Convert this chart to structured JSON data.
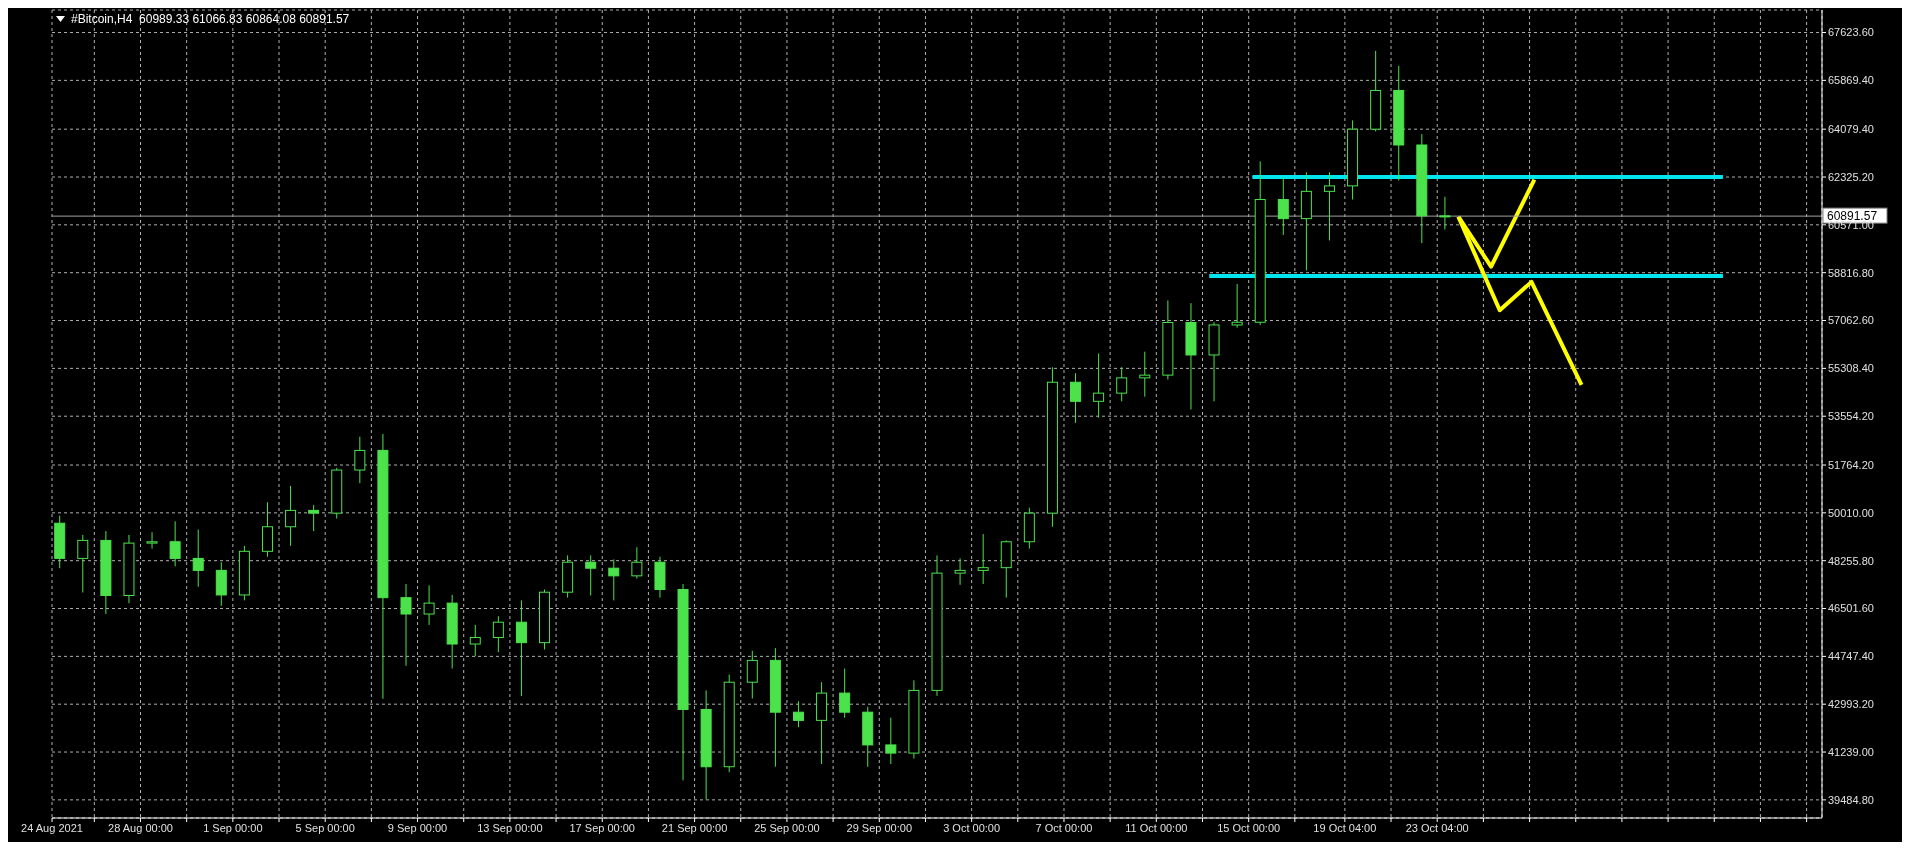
{
  "chart_data": {
    "type": "candlestick",
    "title": "#Bitcoin,H4  60989.33 61066.83 60864.08 60891.57",
    "color": "#4ce24c",
    "x": [
      "2021-08-24T12:00",
      "2021-08-25T12:00",
      "2021-08-26T12:00",
      "2021-08-27T12:00",
      "2021-08-28T12:00",
      "2021-08-29T12:00",
      "2021-08-30T12:00",
      "2021-08-31T12:00",
      "2021-09-01T12:00",
      "2021-09-02T12:00",
      "2021-09-03T12:00",
      "2021-09-04T12:00",
      "2021-09-05T12:00",
      "2021-09-06T12:00",
      "2021-09-07T12:00",
      "2021-09-08T12:00",
      "2021-09-09T12:00",
      "2021-09-10T12:00",
      "2021-09-11T12:00",
      "2021-09-12T12:00",
      "2021-09-13T12:00",
      "2021-09-14T12:00",
      "2021-09-15T12:00",
      "2021-09-16T12:00",
      "2021-09-17T12:00",
      "2021-09-18T12:00",
      "2021-09-19T12:00",
      "2021-09-20T12:00",
      "2021-09-21T12:00",
      "2021-09-22T12:00",
      "2021-09-23T12:00",
      "2021-09-24T12:00",
      "2021-09-25T12:00",
      "2021-09-26T12:00",
      "2021-09-27T12:00",
      "2021-09-28T12:00",
      "2021-09-29T12:00",
      "2021-09-30T12:00",
      "2021-10-01T12:00",
      "2021-10-02T12:00",
      "2021-10-03T12:00",
      "2021-10-04T12:00",
      "2021-10-05T12:00",
      "2021-10-06T12:00",
      "2021-10-07T12:00",
      "2021-10-08T12:00",
      "2021-10-09T12:00",
      "2021-10-10T12:00",
      "2021-10-11T12:00",
      "2021-10-12T12:00",
      "2021-10-13T12:00",
      "2021-10-14T12:00",
      "2021-10-15T12:00",
      "2021-10-16T12:00",
      "2021-10-17T12:00",
      "2021-10-18T12:00",
      "2021-10-19T12:00",
      "2021-10-20T12:00",
      "2021-10-21T12:00",
      "2021-10-22T12:00",
      "2021-10-23T12:00"
    ],
    "ohlc": [
      [
        49630,
        49910,
        47980,
        48340
      ],
      [
        48340,
        49200,
        47090,
        49000
      ],
      [
        49000,
        49340,
        46300,
        46980
      ],
      [
        46980,
        49200,
        46700,
        48900
      ],
      [
        48900,
        49300,
        48700,
        48950
      ],
      [
        48950,
        49700,
        48050,
        48340
      ],
      [
        48340,
        49400,
        47300,
        47900
      ],
      [
        47900,
        48200,
        46600,
        47000
      ],
      [
        47000,
        48800,
        46800,
        48600
      ],
      [
        48600,
        50400,
        48400,
        49500
      ],
      [
        49500,
        51000,
        48800,
        50100
      ],
      [
        50100,
        50300,
        49340,
        50000
      ],
      [
        50000,
        51660,
        49800,
        51580
      ],
      [
        51580,
        52800,
        51100,
        52300
      ],
      [
        52300,
        52900,
        43190,
        46900
      ],
      [
        46900,
        47400,
        44400,
        46300
      ],
      [
        46300,
        47350,
        45900,
        46700
      ],
      [
        46700,
        47000,
        44300,
        45200
      ],
      [
        45200,
        45900,
        44750,
        45440
      ],
      [
        45440,
        46220,
        44900,
        46000
      ],
      [
        46000,
        46800,
        43290,
        45250
      ],
      [
        45250,
        47200,
        45000,
        47100
      ],
      [
        47100,
        48450,
        46900,
        48200
      ],
      [
        48200,
        48450,
        46980,
        47980
      ],
      [
        47980,
        48300,
        46800,
        47700
      ],
      [
        47700,
        48750,
        47600,
        48200
      ],
      [
        48200,
        48400,
        46900,
        47200
      ],
      [
        47200,
        47400,
        40200,
        42800
      ],
      [
        42800,
        43500,
        39500,
        40700
      ],
      [
        40700,
        44080,
        40500,
        43800
      ],
      [
        43800,
        44950,
        43200,
        44600
      ],
      [
        44600,
        45050,
        40700,
        42700
      ],
      [
        42700,
        43100,
        42150,
        42400
      ],
      [
        42400,
        43800,
        40800,
        43400
      ],
      [
        43400,
        44300,
        42500,
        42700
      ],
      [
        42700,
        42900,
        40700,
        41500
      ],
      [
        41500,
        42500,
        40800,
        41200
      ],
      [
        41200,
        43870,
        41000,
        43500
      ],
      [
        43500,
        48450,
        43300,
        47800
      ],
      [
        47800,
        48340,
        47370,
        47900
      ],
      [
        47900,
        49230,
        47400,
        48000
      ],
      [
        48000,
        49000,
        46900,
        48950
      ],
      [
        48950,
        50200,
        48700,
        50000
      ],
      [
        50000,
        55350,
        49500,
        54800
      ],
      [
        54800,
        55130,
        53310,
        54100
      ],
      [
        54100,
        55850,
        53500,
        54400
      ],
      [
        54400,
        55350,
        54100,
        54960
      ],
      [
        54960,
        55920,
        54270,
        55060
      ],
      [
        55060,
        57800,
        54900,
        56990
      ],
      [
        56990,
        57700,
        53800,
        55800
      ],
      [
        55800,
        57000,
        54100,
        56900
      ],
      [
        56900,
        58400,
        56800,
        57000
      ],
      [
        57000,
        62900,
        56900,
        61500
      ],
      [
        61500,
        62300,
        60200,
        60800
      ],
      [
        60800,
        62500,
        58900,
        61800
      ],
      [
        61800,
        62500,
        60000,
        62000
      ],
      [
        62000,
        64400,
        61500,
        64080
      ],
      [
        64080,
        66950,
        64000,
        65500
      ],
      [
        65500,
        66400,
        62200,
        63500
      ],
      [
        63500,
        63900,
        59900,
        60900
      ],
      [
        60900,
        61600,
        60400,
        60891.57
      ]
    ],
    "series": [
      {
        "type": "line",
        "color": "#00e5ee",
        "x": [
          "2021-10-15T04:00",
          "2021-11-04T13:00"
        ],
        "values": [
          62325,
          62325
        ]
      },
      {
        "type": "line",
        "color": "#00e5ee",
        "x": [
          "2021-10-13T07:00",
          "2021-11-04T13:00"
        ],
        "values": [
          58700,
          58700
        ]
      },
      {
        "type": "line",
        "color": "#ffff00",
        "x": [
          "2021-10-24T02:00",
          "2021-10-25T12:00",
          "2021-10-27T09:00"
        ],
        "values": [
          60870,
          59040,
          62230
        ]
      },
      {
        "type": "line",
        "color": "#ffff00",
        "x": [
          "2021-10-24T02:00",
          "2021-10-25T21:00",
          "2021-10-27T06:00",
          "2021-10-29T10:00"
        ],
        "values": [
          60870,
          57440,
          58480,
          54700
        ]
      }
    ],
    "ref_lines": [
      {
        "axis": "y",
        "value": 60891.57,
        "label": "60891.57",
        "color": "#a0a0a0"
      }
    ],
    "xlim": [
      "2021-08-24T04:00",
      "2021-11-08T20:00"
    ],
    "ylim": [
      38820,
      68450
    ],
    "xticks": [
      {
        "value": "2021-08-24T04:00",
        "label": "24 Aug 2021"
      },
      {
        "value": "2021-08-26T00:00",
        "label": null
      },
      {
        "value": "2021-08-28T00:00",
        "label": "28 Aug 00:00"
      },
      {
        "value": "2021-08-30T00:00",
        "label": null
      },
      {
        "value": "2021-09-01T00:00",
        "label": "1 Sep 00:00"
      },
      {
        "value": "2021-09-03T00:00",
        "label": null
      },
      {
        "value": "2021-09-05T00:00",
        "label": "5 Sep 00:00"
      },
      {
        "value": "2021-09-07T00:00",
        "label": null
      },
      {
        "value": "2021-09-09T00:00",
        "label": "9 Sep 00:00"
      },
      {
        "value": "2021-09-11T00:00",
        "label": null
      },
      {
        "value": "2021-09-13T00:00",
        "label": "13 Sep 00:00"
      },
      {
        "value": "2021-09-15T00:00",
        "label": null
      },
      {
        "value": "2021-09-17T00:00",
        "label": "17 Sep 00:00"
      },
      {
        "value": "2021-09-19T00:00",
        "label": null
      },
      {
        "value": "2021-09-21T00:00",
        "label": "21 Sep 00:00"
      },
      {
        "value": "2021-09-23T00:00",
        "label": null
      },
      {
        "value": "2021-09-25T00:00",
        "label": "25 Sep 00:00"
      },
      {
        "value": "2021-09-27T00:00",
        "label": null
      },
      {
        "value": "2021-09-29T00:00",
        "label": "29 Sep 00:00"
      },
      {
        "value": "2021-10-01T00:00",
        "label": null
      },
      {
        "value": "2021-10-03T00:00",
        "label": "3 Oct 00:00"
      },
      {
        "value": "2021-10-05T00:00",
        "label": null
      },
      {
        "value": "2021-10-07T00:00",
        "label": "7 Oct 00:00"
      },
      {
        "value": "2021-10-09T00:00",
        "label": null
      },
      {
        "value": "2021-10-11T00:00",
        "label": "11 Oct 00:00"
      },
      {
        "value": "2021-10-13T00:00",
        "label": null
      },
      {
        "value": "2021-10-15T00:00",
        "label": "15 Oct 00:00"
      },
      {
        "value": "2021-10-17T00:00",
        "label": null
      },
      {
        "value": "2021-10-19T04:00",
        "label": "19 Oct 04:00"
      },
      {
        "value": "2021-10-21T04:00",
        "label": null
      },
      {
        "value": "2021-10-23T04:00",
        "label": "23 Oct 04:00"
      },
      {
        "value": "2021-10-25T04:00",
        "label": null
      },
      {
        "value": "2021-10-27T04:00",
        "label": null
      },
      {
        "value": "2021-10-29T04:00",
        "label": null
      },
      {
        "value": "2021-10-31T04:00",
        "label": null
      },
      {
        "value": "2021-11-02T04:00",
        "label": null
      },
      {
        "value": "2021-11-04T04:00",
        "label": null
      },
      {
        "value": "2021-11-06T04:00",
        "label": null
      },
      {
        "value": "2021-11-08T04:00",
        "label": null
      }
    ],
    "yticks": [
      {
        "value": 39484.8,
        "label": "39484.80"
      },
      {
        "value": 41239,
        "label": "41239.00"
      },
      {
        "value": 42993.2,
        "label": "42993.20"
      },
      {
        "value": 44747.4,
        "label": "44747.40"
      },
      {
        "value": 46501.6,
        "label": "46501.60"
      },
      {
        "value": 48255.8,
        "label": "48255.80"
      },
      {
        "value": 50010,
        "label": "50010.00"
      },
      {
        "value": 51764.2,
        "label": "51764.20"
      },
      {
        "value": 53554.2,
        "label": "53554.20"
      },
      {
        "value": 55308.4,
        "label": "55308.40"
      },
      {
        "value": 57062.6,
        "label": "57062.60"
      },
      {
        "value": 58816.8,
        "label": "58816.80"
      },
      {
        "value": 60571,
        "label": "60571.00"
      },
      {
        "value": 62325.2,
        "label": "62325.20"
      },
      {
        "value": 64079.4,
        "label": "64079.40"
      },
      {
        "value": 65869.4,
        "label": "65869.40"
      },
      {
        "value": 67623.6,
        "label": "67623.60"
      }
    ],
    "grid": true
  }
}
